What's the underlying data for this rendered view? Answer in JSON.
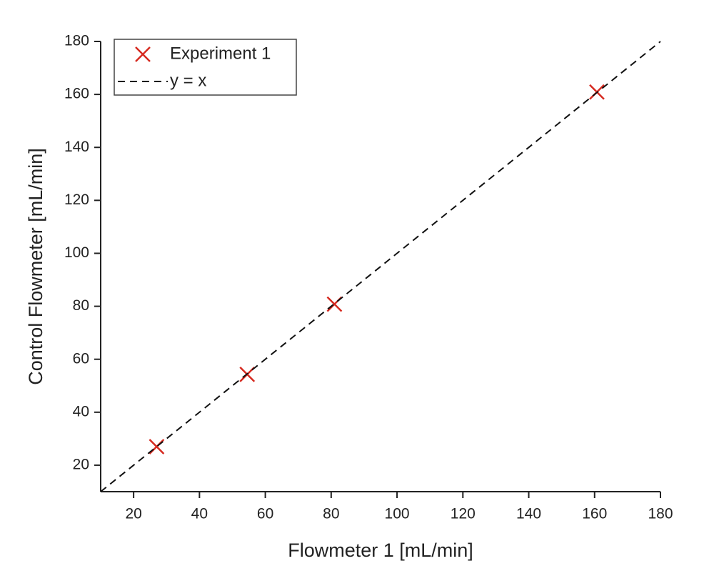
{
  "chart_data": {
    "type": "scatter",
    "x_label": "Flowmeter 1 [mL/min]",
    "y_label": "Control Flowmeter [mL/min]",
    "xlim": [
      10,
      180
    ],
    "ylim": [
      10,
      180
    ],
    "xticks": [
      20,
      40,
      60,
      80,
      100,
      120,
      140,
      160,
      180
    ],
    "yticks": [
      20,
      40,
      60,
      80,
      100,
      120,
      140,
      160,
      180
    ],
    "legend": "upper left",
    "series": [
      {
        "name": "Experiment 1",
        "color": "#d62a20",
        "marker": "x",
        "x": [
          27,
          54.5,
          81,
          160.7
        ],
        "values": [
          27,
          54.3,
          80.8,
          160.9
        ]
      },
      {
        "name": "y = x",
        "color": "#111111",
        "line": "dashed",
        "x": [
          10,
          180
        ],
        "values": [
          10,
          180
        ]
      }
    ]
  }
}
